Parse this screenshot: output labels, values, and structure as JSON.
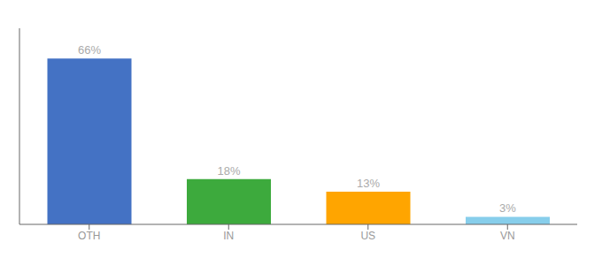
{
  "chart_data": {
    "type": "bar",
    "categories": [
      "OTH",
      "IN",
      "US",
      "VN"
    ],
    "values": [
      66,
      18,
      13,
      3
    ],
    "value_labels": [
      "66%",
      "18%",
      "13%",
      "3%"
    ],
    "colors": [
      "#4472C4",
      "#3DAA3D",
      "#FFA500",
      "#87CEEB"
    ],
    "ylim": [
      0,
      78
    ],
    "data_labels": true,
    "tick_labels": "x",
    "grid": false
  }
}
